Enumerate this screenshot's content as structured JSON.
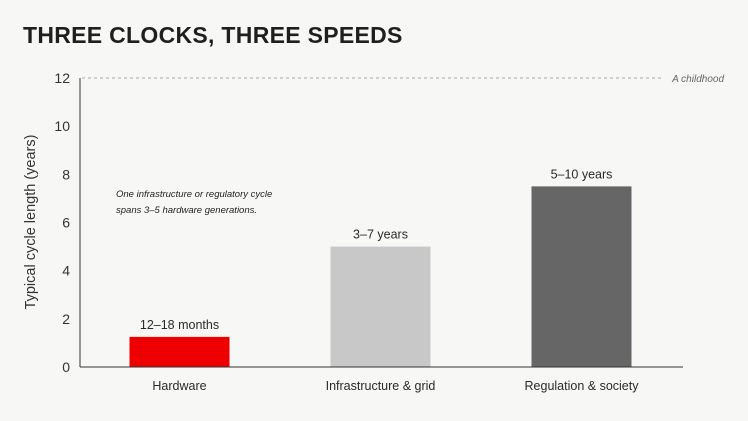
{
  "chart_data": {
    "type": "bar",
    "title": "THREE CLOCKS, THREE SPEEDS",
    "xlabel": "",
    "ylabel": "Typical cycle length (years)",
    "ylim": [
      0,
      12
    ],
    "yticks": [
      "0",
      "2",
      "4",
      "6",
      "8",
      "10",
      "12"
    ],
    "grid": false,
    "categories": [
      "Hardware",
      "Infrastructure & grid",
      "Regulation & society"
    ],
    "values": [
      1.25,
      5,
      7.5
    ],
    "data_labels": [
      "12–18 months",
      "3–7 years",
      "5–10 years"
    ],
    "colors": [
      "#ee0000",
      "#c8c8c8",
      "#666666"
    ],
    "reference_line": {
      "value": 12,
      "label": "A childhood",
      "style": "dashed",
      "color": "#aaaaaa"
    },
    "annotation": [
      "One infrastructure or regulatory cycle",
      "spans 3–5 hardware generations."
    ]
  }
}
